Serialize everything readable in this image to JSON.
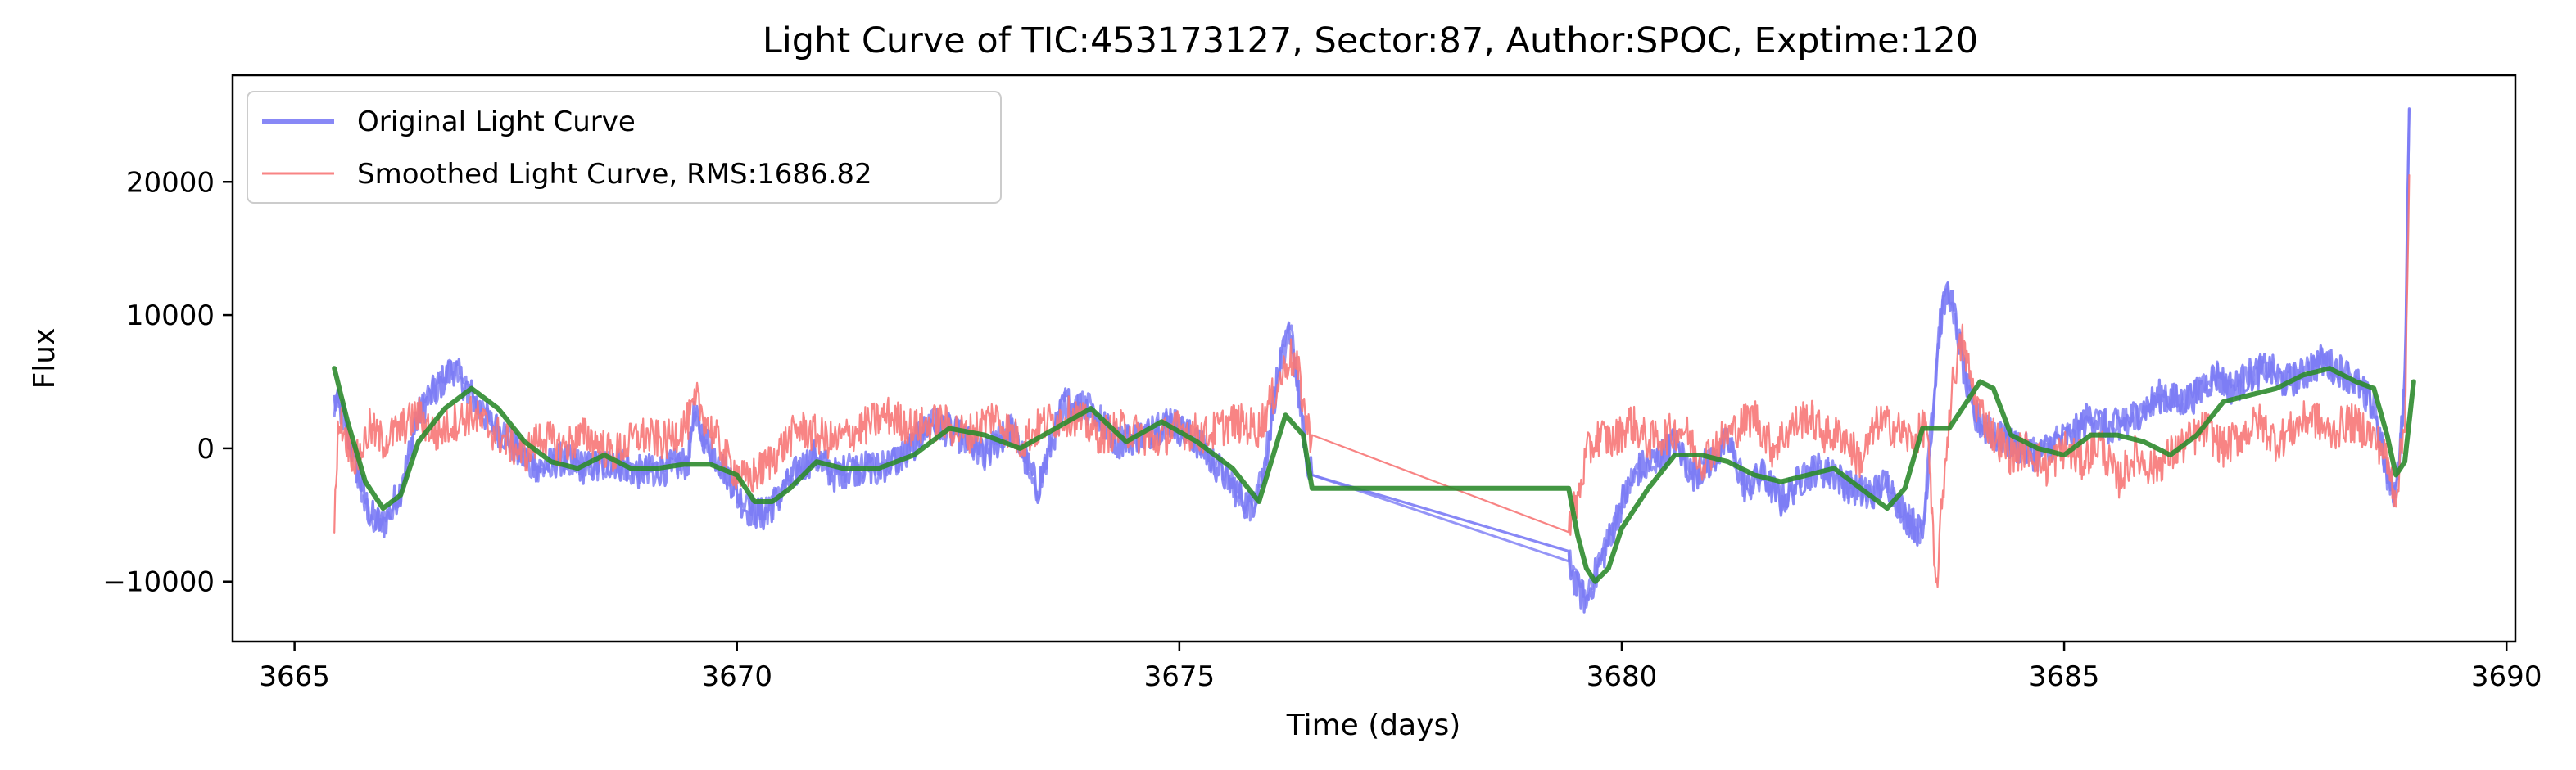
{
  "chart_data": {
    "type": "line",
    "title": "Light Curve of TIC:453173127, Sector:87, Author:SPOC, Exptime:120",
    "xlabel": "Time (days)",
    "ylabel": "Flux",
    "xlim": [
      3664.3,
      3690.1
    ],
    "ylim": [
      -14500,
      28000
    ],
    "xticks": [
      3665,
      3670,
      3675,
      3680,
      3685,
      3690
    ],
    "yticks": [
      -10000,
      0,
      10000,
      20000
    ],
    "xtick_labels": [
      "3665",
      "3670",
      "3675",
      "3680",
      "3685",
      "3690"
    ],
    "ytick_labels": [
      "−10000",
      "0",
      "10000",
      "20000"
    ],
    "grid": false,
    "legend_position": "top-left",
    "series": [
      {
        "name": "Original Light Curve",
        "color": "#7b7bf5",
        "style": "thick-noisy",
        "x": [
          3665.45,
          3665.55,
          3665.7,
          3665.85,
          3666.0,
          3666.2,
          3666.4,
          3666.6,
          3666.8,
          3667.0,
          3667.2,
          3667.4,
          3667.6,
          3667.8,
          3668.0,
          3668.3,
          3668.6,
          3668.9,
          3669.2,
          3669.45,
          3669.5,
          3669.7,
          3669.9,
          3670.1,
          3670.3,
          3670.5,
          3670.7,
          3670.9,
          3671.1,
          3671.3,
          3671.6,
          3671.9,
          3672.2,
          3672.5,
          3672.8,
          3673.1,
          3673.4,
          3673.7,
          3674.0,
          3674.3,
          3674.6,
          3674.9,
          3675.2,
          3675.5,
          3675.8,
          3675.95,
          3676.1,
          3676.25,
          3676.35,
          3676.45,
          3676.5,
          3679.4,
          3679.5,
          3679.6,
          3679.7,
          3679.85,
          3680.0,
          3680.2,
          3680.4,
          3680.6,
          3680.8,
          3681.0,
          3681.2,
          3681.4,
          3681.6,
          3681.8,
          3682.0,
          3682.2,
          3682.4,
          3682.6,
          3682.8,
          3683.0,
          3683.2,
          3683.4,
          3683.5,
          3683.6,
          3683.7,
          3683.8,
          3683.9,
          3684.0,
          3684.1,
          3684.2,
          3684.35,
          3684.5,
          3684.7,
          3684.9,
          3685.1,
          3685.3,
          3685.5,
          3685.7,
          3685.9,
          3686.1,
          3686.3,
          3686.5,
          3686.7,
          3686.9,
          3687.1,
          3687.3,
          3687.5,
          3687.7,
          3687.9,
          3688.1,
          3688.3,
          3688.5,
          3688.65,
          3688.75,
          3688.85,
          3688.9
        ],
        "y": [
          3500,
          2500,
          -1500,
          -5000,
          -5800,
          -3000,
          2500,
          4500,
          6000,
          4000,
          2000,
          800,
          -800,
          -1500,
          -800,
          -1500,
          -1000,
          -1800,
          -1500,
          -1000,
          2500,
          0,
          -2000,
          -4500,
          -5000,
          -3500,
          -1500,
          -500,
          -2000,
          -1500,
          -1500,
          -500,
          2000,
          1000,
          -500,
          1500,
          -3000,
          3500,
          3000,
          500,
          1000,
          2000,
          500,
          -2000,
          -4500,
          -2000,
          5000,
          9000,
          4000,
          -1500,
          -2000,
          -8500,
          -10500,
          -11500,
          -9500,
          -7000,
          -4000,
          -1500,
          -800,
          500,
          -2000,
          -1000,
          500,
          -3000,
          -2000,
          -4000,
          -2500,
          -1500,
          -2000,
          -3000,
          -3500,
          -2500,
          -5000,
          -6500,
          1500,
          9500,
          12000,
          8500,
          4500,
          2500,
          1500,
          1000,
          500,
          0,
          -500,
          500,
          1000,
          2500,
          1500,
          2000,
          3000,
          4000,
          3500,
          4000,
          5500,
          4500,
          5500,
          6000,
          5000,
          5500,
          6500,
          6000,
          5000,
          3000,
          -2000,
          -3500,
          5000,
          25500
        ]
      },
      {
        "name": "Smoothed Light Curve, RMS:1686.82",
        "color": "#f77777",
        "style": "thin-noisy",
        "x": [
          3665.45,
          3665.5,
          3665.6,
          3665.7,
          3665.85,
          3666.0,
          3666.2,
          3666.4,
          3666.6,
          3666.8,
          3667.0,
          3667.2,
          3667.4,
          3667.6,
          3667.8,
          3668.0,
          3668.3,
          3668.6,
          3668.9,
          3669.2,
          3669.45,
          3669.55,
          3669.7,
          3669.9,
          3670.1,
          3670.3,
          3670.5,
          3670.7,
          3670.9,
          3671.1,
          3671.4,
          3671.7,
          3672.0,
          3672.3,
          3672.6,
          3672.9,
          3673.2,
          3673.5,
          3673.8,
          3674.1,
          3674.4,
          3674.7,
          3675.0,
          3675.3,
          3675.6,
          3675.9,
          3676.1,
          3676.25,
          3676.35,
          3676.45,
          3676.5,
          3679.4,
          3679.5,
          3679.6,
          3679.75,
          3679.9,
          3680.1,
          3680.3,
          3680.5,
          3680.7,
          3680.9,
          3681.1,
          3681.3,
          3681.5,
          3681.7,
          3681.9,
          3682.1,
          3682.3,
          3682.5,
          3682.7,
          3682.9,
          3683.1,
          3683.3,
          3683.45,
          3683.55,
          3683.65,
          3683.75,
          3683.85,
          3684.0,
          3684.2,
          3684.4,
          3684.6,
          3684.8,
          3685.0,
          3685.2,
          3685.4,
          3685.6,
          3685.8,
          3686.0,
          3686.2,
          3686.4,
          3686.6,
          3686.8,
          3687.0,
          3687.2,
          3687.4,
          3687.6,
          3687.8,
          3688.0,
          3688.2,
          3688.4,
          3688.6,
          3688.75,
          3688.85,
          3688.9
        ],
        "y": [
          -6000,
          2500,
          500,
          -1000,
          1500,
          500,
          1500,
          2500,
          1000,
          2000,
          2500,
          1500,
          500,
          -500,
          1000,
          0,
          1000,
          -500,
          1000,
          500,
          2000,
          3500,
          1500,
          -1000,
          -2500,
          -1500,
          0,
          1500,
          1000,
          500,
          1500,
          2500,
          1500,
          2000,
          1000,
          2500,
          500,
          2000,
          2500,
          1000,
          1500,
          500,
          1500,
          1000,
          2000,
          1500,
          4500,
          7000,
          5500,
          1500,
          1000,
          -5500,
          -4000,
          -500,
          1000,
          500,
          2000,
          500,
          1000,
          1500,
          -1000,
          500,
          1500,
          2500,
          0,
          1500,
          2500,
          1000,
          1000,
          -1000,
          2000,
          1500,
          500,
          2000,
          -11000,
          -1500,
          5500,
          8000,
          3500,
          1000,
          -500,
          0,
          -1500,
          0,
          -1000,
          500,
          -2500,
          -500,
          -1500,
          -500,
          500,
          1500,
          0,
          1000,
          2000,
          500,
          1500,
          2500,
          1000,
          2000,
          1500,
          0,
          -3500,
          2000,
          20500
        ]
      },
      {
        "name": "",
        "color": "#2e8b2e",
        "style": "smooth",
        "x": [
          3665.45,
          3665.6,
          3665.8,
          3666.0,
          3666.2,
          3666.4,
          3666.7,
          3667.0,
          3667.3,
          3667.6,
          3667.9,
          3668.2,
          3668.5,
          3668.8,
          3669.1,
          3669.4,
          3669.7,
          3670.0,
          3670.2,
          3670.4,
          3670.6,
          3670.9,
          3671.2,
          3671.6,
          3672.0,
          3672.4,
          3672.8,
          3673.2,
          3673.6,
          3674.0,
          3674.4,
          3674.8,
          3675.2,
          3675.6,
          3675.9,
          3676.2,
          3676.4,
          3676.5,
          3679.4,
          3679.5,
          3679.6,
          3679.7,
          3679.85,
          3680.0,
          3680.3,
          3680.6,
          3680.9,
          3681.2,
          3681.5,
          3681.8,
          3682.1,
          3682.4,
          3682.7,
          3683.0,
          3683.2,
          3683.4,
          3683.5,
          3683.7,
          3683.9,
          3684.05,
          3684.2,
          3684.4,
          3684.7,
          3685.0,
          3685.3,
          3685.6,
          3685.9,
          3686.2,
          3686.5,
          3686.8,
          3687.1,
          3687.4,
          3687.7,
          3688.0,
          3688.3,
          3688.5,
          3688.65,
          3688.75,
          3688.85,
          3688.95
        ],
        "y": [
          6000,
          2000,
          -2500,
          -4500,
          -3500,
          500,
          3000,
          4500,
          3000,
          500,
          -1000,
          -1500,
          -500,
          -1500,
          -1500,
          -1200,
          -1200,
          -2000,
          -4000,
          -4000,
          -3000,
          -1000,
          -1500,
          -1500,
          -500,
          1500,
          1000,
          0,
          1500,
          3000,
          500,
          2000,
          500,
          -1500,
          -4000,
          2500,
          1000,
          -3000,
          -3000,
          -6500,
          -9000,
          -10000,
          -9000,
          -6000,
          -3000,
          -500,
          -500,
          -1000,
          -2000,
          -2500,
          -2000,
          -1500,
          -3000,
          -4500,
          -3000,
          1500,
          1500,
          1500,
          3500,
          5000,
          4500,
          1000,
          0,
          -500,
          1000,
          1000,
          500,
          -500,
          1000,
          3500,
          4000,
          4500,
          5500,
          6000,
          5000,
          4500,
          1000,
          -2000,
          -1000,
          5000
        ]
      }
    ],
    "legend": [
      {
        "label": "Original Light Curve",
        "color": "#7b7bf5"
      },
      {
        "label": "Smoothed Light Curve, RMS:1686.82",
        "color": "#f77777"
      }
    ]
  }
}
